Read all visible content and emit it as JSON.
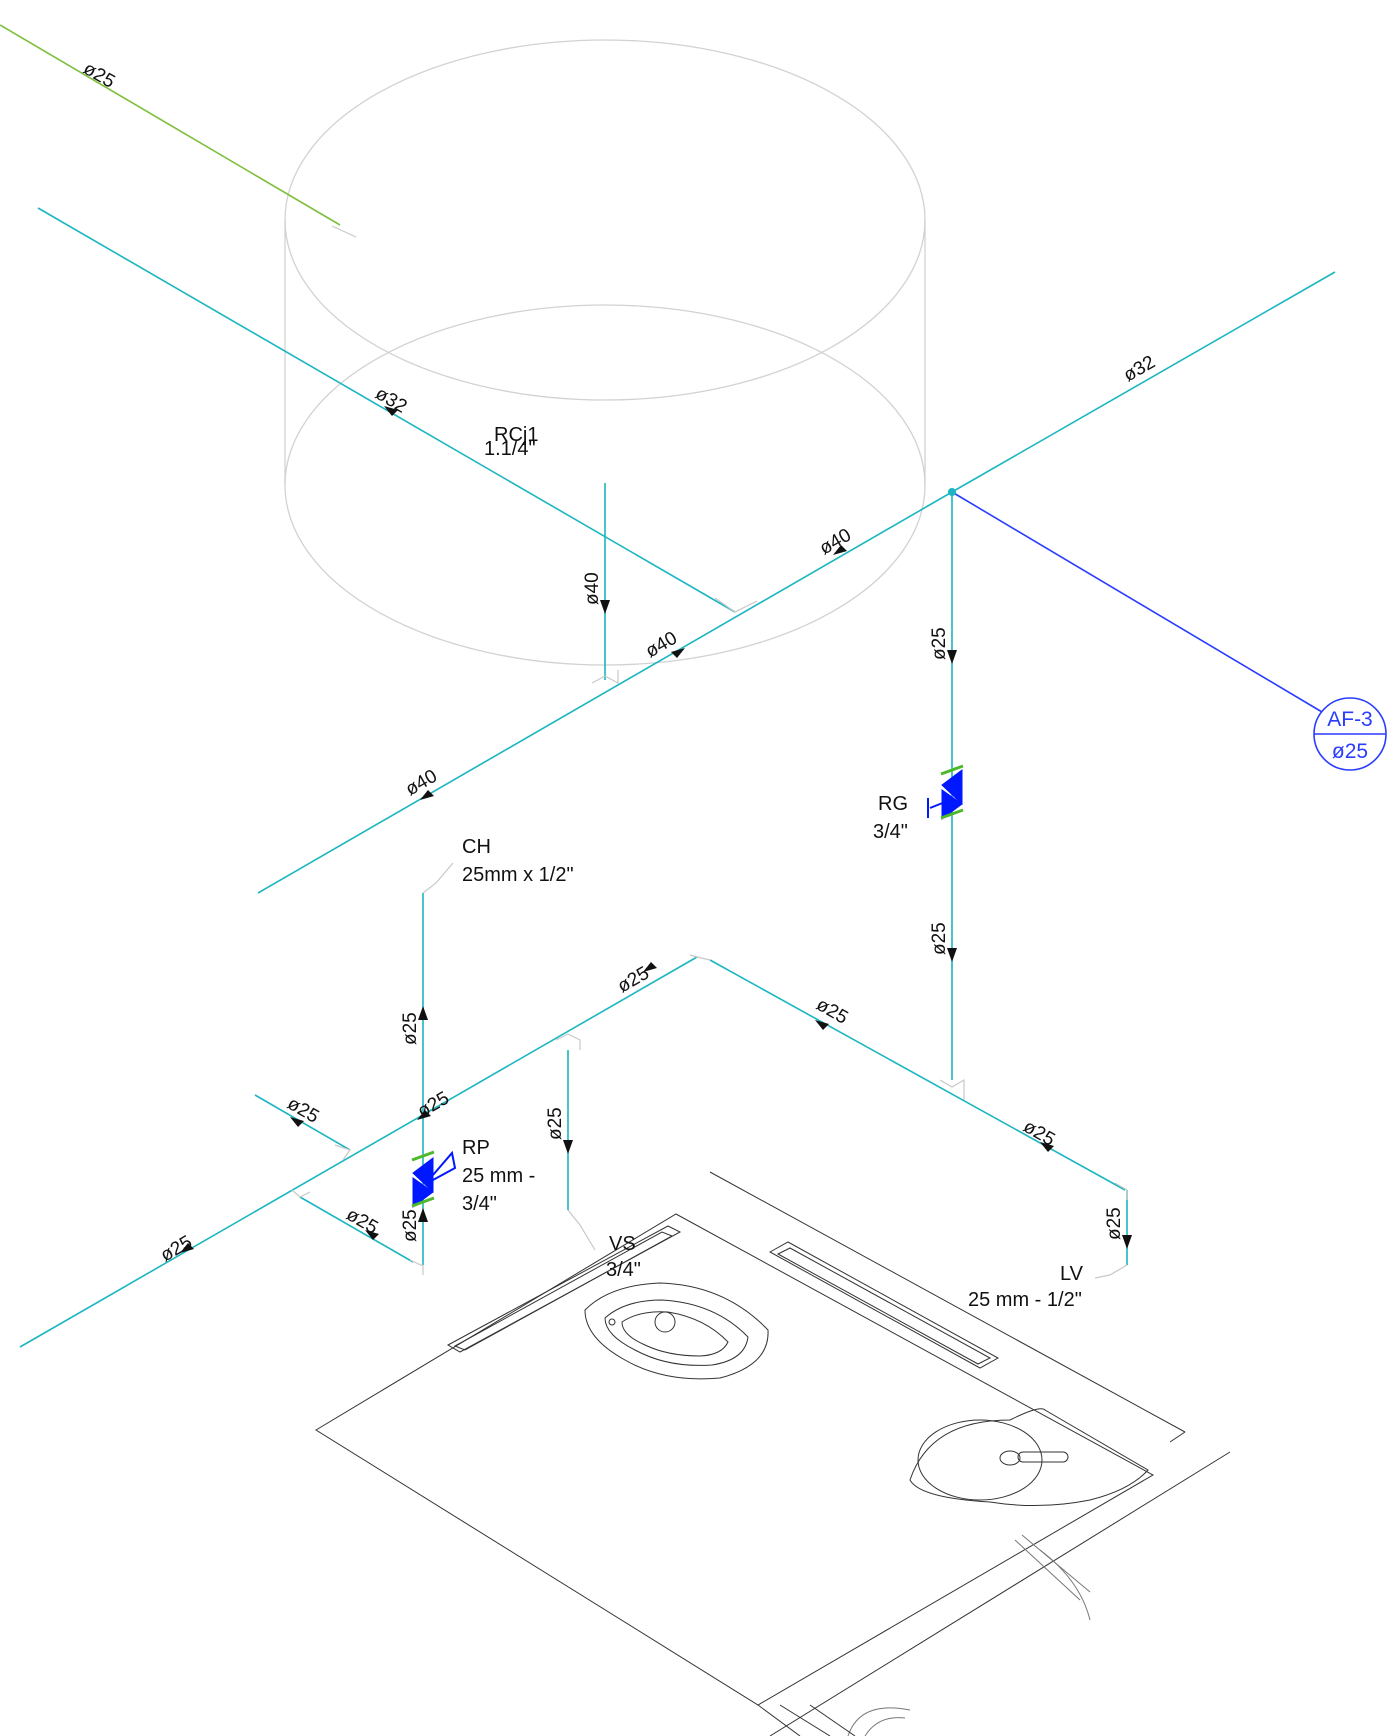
{
  "pipe_labels": {
    "green_top": "ø25",
    "left_upper": "ø32",
    "right_upper": "ø32",
    "main_mid": "ø40",
    "main_right": "ø40",
    "main_left": "ø40",
    "riser_tank": "ø40",
    "riser_right_upper": "ø25",
    "riser_right_lower": "ø25",
    "branch_top_left": "ø25",
    "branch_top_right": "ø25",
    "lower_main_left": "ø25",
    "lower_left_short": "ø25",
    "lower_left_diag": "ø25",
    "riser_ch": "ø25",
    "riser_rp_low": "ø25",
    "riser_vs": "ø25",
    "branch_lv": "ø25",
    "riser_lv": "ø25",
    "lower_far_left": "ø25"
  },
  "fixtures": {
    "rcj": {
      "name": "RCj1",
      "size": "1.1/4\""
    },
    "rg": {
      "name": "RG",
      "size": "3/4\""
    },
    "ch": {
      "name": "CH",
      "size": "25mm x 1/2\""
    },
    "rp": {
      "name": "RP",
      "size_line1": "25 mm -",
      "size_line2": "3/4\""
    },
    "vs": {
      "name": "VS",
      "size": "3/4\""
    },
    "lv": {
      "name": "LV",
      "size": "25 mm - 1/2\""
    }
  },
  "tag": {
    "id": "AF-3",
    "size": "ø25"
  },
  "colors": {
    "cold_water_pipe": "#1bb6c1",
    "supply_pipe": "#7dbf3c",
    "tag_pipe": "#2a3cff",
    "valve": "#0018ff"
  }
}
